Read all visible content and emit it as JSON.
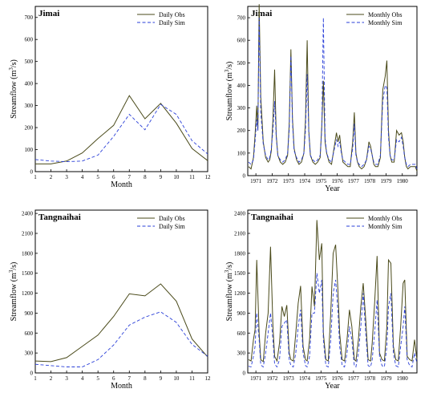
{
  "colors": {
    "obs": "#4a4a1a",
    "sim": "#2a3fd8"
  },
  "chart_data": [
    {
      "type": "line",
      "title": "Jimai",
      "xlabel": "Month",
      "ylabel": "Streamflow (m3/s)",
      "xlim": [
        1,
        12
      ],
      "ylim": [
        0,
        750
      ],
      "xticks": [
        "1",
        "2",
        "3",
        "4",
        "5",
        "6",
        "7",
        "8",
        "9",
        "10",
        "11",
        "12"
      ],
      "yticks": [
        "0",
        "100",
        "200",
        "300",
        "400",
        "500",
        "600",
        "700"
      ],
      "legend_position": "top-right",
      "x": [
        1,
        2,
        3,
        4,
        5,
        6,
        7,
        8,
        9,
        10,
        11,
        12
      ],
      "series": [
        {
          "name": "Daily Obs",
          "values": [
            35,
            35,
            48,
            85,
            150,
            210,
            345,
            240,
            310,
            220,
            105,
            50
          ]
        },
        {
          "name": "Daily Sim",
          "values": [
            55,
            48,
            45,
            48,
            75,
            160,
            260,
            190,
            305,
            260,
            140,
            80
          ]
        }
      ]
    },
    {
      "type": "line",
      "title": "Jimai",
      "xlabel": "Year",
      "ylabel": "Streamflow (m3/s)",
      "xlim": [
        1970.5,
        1980.9
      ],
      "ylim": [
        0,
        750
      ],
      "xticks": [
        "1971",
        "1972",
        "1973",
        "1974",
        "1975",
        "1976",
        "1977",
        "1978",
        "1979",
        "1980"
      ],
      "yticks": [
        "0",
        "100",
        "200",
        "300",
        "400",
        "500",
        "600",
        "700"
      ],
      "legend_position": "top-right",
      "series": [
        {
          "name": "Monthly Obs",
          "x": [
            1970.55,
            1970.7,
            1970.85,
            1970.95,
            1971.05,
            1971.12,
            1971.2,
            1971.3,
            1971.45,
            1971.6,
            1971.75,
            1971.85,
            1971.95,
            1972.05,
            1972.15,
            1972.25,
            1972.35,
            1972.5,
            1972.65,
            1972.8,
            1972.95,
            1973.05,
            1973.15,
            1973.25,
            1973.35,
            1973.5,
            1973.65,
            1973.8,
            1973.95,
            1974.05,
            1974.15,
            1974.25,
            1974.35,
            1974.5,
            1974.65,
            1974.8,
            1974.95,
            1975.05,
            1975.15,
            1975.25,
            1975.35,
            1975.5,
            1975.65,
            1975.8,
            1975.95,
            1976.05,
            1976.15,
            1976.25,
            1976.35,
            1976.5,
            1976.65,
            1976.8,
            1976.95,
            1977.05,
            1977.15,
            1977.25,
            1977.35,
            1977.5,
            1977.65,
            1977.8,
            1977.95,
            1978.05,
            1978.15,
            1978.25,
            1978.35,
            1978.5,
            1978.65,
            1978.8,
            1978.95,
            1979.05,
            1979.15,
            1979.25,
            1979.35,
            1979.5,
            1979.65,
            1979.8,
            1979.95,
            1980.05,
            1980.15,
            1980.25,
            1980.35,
            1980.5,
            1980.65,
            1980.8,
            1980.9
          ],
          "values": [
            40,
            30,
            80,
            180,
            310,
            200,
            760,
            350,
            150,
            80,
            60,
            70,
            110,
            250,
            470,
            180,
            90,
            60,
            50,
            60,
            90,
            230,
            560,
            250,
            120,
            70,
            50,
            60,
            100,
            250,
            600,
            200,
            90,
            60,
            50,
            60,
            80,
            220,
            420,
            150,
            100,
            60,
            50,
            120,
            190,
            150,
            180,
            110,
            60,
            50,
            40,
            40,
            150,
            280,
            100,
            60,
            40,
            30,
            40,
            70,
            150,
            130,
            90,
            50,
            40,
            40,
            80,
            380,
            440,
            510,
            200,
            90,
            60,
            60,
            200,
            180,
            190,
            150,
            80,
            40,
            30,
            40,
            40,
            40,
            20
          ]
        },
        {
          "name": "Monthly Sim",
          "x": [
            1970.55,
            1970.7,
            1970.85,
            1970.95,
            1971.05,
            1971.12,
            1971.2,
            1971.3,
            1971.45,
            1971.6,
            1971.75,
            1971.85,
            1971.95,
            1972.05,
            1972.15,
            1972.25,
            1972.35,
            1972.5,
            1972.65,
            1972.8,
            1972.95,
            1973.05,
            1973.15,
            1973.25,
            1973.35,
            1973.5,
            1973.65,
            1973.8,
            1973.95,
            1974.05,
            1974.15,
            1974.25,
            1974.35,
            1974.5,
            1974.65,
            1974.8,
            1974.95,
            1975.05,
            1975.15,
            1975.25,
            1975.35,
            1975.5,
            1975.65,
            1975.8,
            1975.95,
            1976.05,
            1976.15,
            1976.25,
            1976.35,
            1976.5,
            1976.65,
            1976.8,
            1976.95,
            1977.05,
            1977.15,
            1977.25,
            1977.35,
            1977.5,
            1977.65,
            1977.8,
            1977.95,
            1978.05,
            1978.15,
            1978.25,
            1978.35,
            1978.5,
            1978.65,
            1978.8,
            1978.95,
            1979.05,
            1979.15,
            1979.25,
            1979.35,
            1979.5,
            1979.65,
            1979.8,
            1979.95,
            1980.05,
            1980.15,
            1980.25,
            1980.35,
            1980.5,
            1980.65,
            1980.8,
            1980.9
          ],
          "values": [
            60,
            50,
            70,
            150,
            250,
            200,
            700,
            280,
            140,
            90,
            70,
            80,
            120,
            200,
            330,
            170,
            90,
            70,
            60,
            70,
            100,
            200,
            530,
            230,
            110,
            80,
            60,
            70,
            100,
            200,
            450,
            190,
            90,
            70,
            60,
            70,
            90,
            200,
            700,
            170,
            100,
            70,
            60,
            110,
            160,
            130,
            150,
            100,
            70,
            60,
            50,
            50,
            120,
            230,
            90,
            60,
            50,
            40,
            50,
            70,
            130,
            120,
            90,
            60,
            50,
            50,
            90,
            330,
            400,
            390,
            170,
            90,
            70,
            70,
            160,
            150,
            170,
            130,
            80,
            50,
            40,
            50,
            50,
            50,
            30
          ]
        }
      ]
    },
    {
      "type": "line",
      "title": "Tangnaihai",
      "xlabel": "Month",
      "ylabel": "Streamflow (m3/s)",
      "xlim": [
        1,
        12
      ],
      "ylim": [
        0,
        2450
      ],
      "xticks": [
        "1",
        "2",
        "3",
        "4",
        "5",
        "6",
        "7",
        "8",
        "9",
        "10",
        "11",
        "12"
      ],
      "yticks": [
        "0",
        "300",
        "600",
        "900",
        "1200",
        "1500",
        "1800",
        "2100",
        "2400"
      ],
      "legend_position": "top-right",
      "x": [
        1,
        2,
        3,
        4,
        5,
        6,
        7,
        8,
        9,
        10,
        11,
        12
      ],
      "series": [
        {
          "name": "Daily Obs",
          "values": [
            180,
            170,
            230,
            400,
            570,
            850,
            1190,
            1160,
            1340,
            1080,
            510,
            240
          ]
        },
        {
          "name": "Daily Sim",
          "values": [
            130,
            110,
            90,
            90,
            200,
            420,
            720,
            840,
            920,
            760,
            430,
            250
          ]
        }
      ]
    },
    {
      "type": "line",
      "title": "Tangnaihai",
      "xlabel": "Year",
      "ylabel": "Streamflow (m3/s)",
      "xlim": [
        1970.5,
        1980.9
      ],
      "ylim": [
        0,
        2450
      ],
      "xticks": [
        "1971",
        "1972",
        "1973",
        "1974",
        "1975",
        "1976",
        "1977",
        "1978",
        "1979",
        "1980"
      ],
      "yticks": [
        "0",
        "300",
        "600",
        "900",
        "1200",
        "1500",
        "1800",
        "2100",
        "2400"
      ],
      "legend_position": "top-right",
      "series": [
        {
          "name": "Monthly Obs",
          "x": [
            1970.55,
            1970.7,
            1970.85,
            1970.95,
            1971.05,
            1971.2,
            1971.3,
            1971.45,
            1971.6,
            1971.75,
            1971.9,
            1972.05,
            1972.15,
            1972.3,
            1972.45,
            1972.6,
            1972.75,
            1972.9,
            1973.05,
            1973.15,
            1973.3,
            1973.45,
            1973.6,
            1973.75,
            1973.9,
            1974.05,
            1974.15,
            1974.3,
            1974.45,
            1974.6,
            1974.75,
            1974.9,
            1975.05,
            1975.15,
            1975.3,
            1975.45,
            1975.6,
            1975.75,
            1975.9,
            1976.05,
            1976.15,
            1976.3,
            1976.45,
            1976.6,
            1976.75,
            1976.9,
            1977.05,
            1977.15,
            1977.3,
            1977.45,
            1977.6,
            1977.75,
            1977.9,
            1978.05,
            1978.15,
            1978.3,
            1978.45,
            1978.6,
            1978.75,
            1978.9,
            1979.05,
            1979.15,
            1979.3,
            1979.45,
            1979.6,
            1979.75,
            1979.9,
            1980.05,
            1980.15,
            1980.3,
            1980.45,
            1980.6,
            1980.75,
            1980.9
          ],
          "values": [
            200,
            180,
            500,
            650,
            1700,
            600,
            200,
            170,
            600,
            900,
            1900,
            700,
            250,
            180,
            450,
            1000,
            850,
            1020,
            300,
            200,
            180,
            600,
            1050,
            1310,
            400,
            200,
            180,
            500,
            1300,
            1000,
            2300,
            1700,
            1950,
            600,
            200,
            180,
            900,
            1800,
            1930,
            1200,
            600,
            200,
            180,
            500,
            950,
            700,
            200,
            180,
            500,
            1000,
            1350,
            800,
            200,
            180,
            450,
            1050,
            1760,
            300,
            200,
            180,
            700,
            1700,
            1650,
            400,
            200,
            180,
            700,
            1350,
            1400,
            250,
            200,
            180,
            500,
            200
          ]
        },
        {
          "name": "Monthly Sim",
          "x": [
            1970.55,
            1970.7,
            1970.85,
            1970.95,
            1971.05,
            1971.2,
            1971.3,
            1971.45,
            1971.6,
            1971.75,
            1971.9,
            1972.05,
            1972.15,
            1972.3,
            1972.45,
            1972.6,
            1972.75,
            1972.9,
            1973.05,
            1973.15,
            1973.3,
            1973.45,
            1973.6,
            1973.75,
            1973.9,
            1974.05,
            1974.15,
            1974.3,
            1974.45,
            1974.6,
            1974.75,
            1974.9,
            1975.05,
            1975.15,
            1975.3,
            1975.45,
            1975.6,
            1975.75,
            1975.9,
            1976.05,
            1976.15,
            1976.3,
            1976.45,
            1976.6,
            1976.75,
            1976.9,
            1977.05,
            1977.15,
            1977.3,
            1977.45,
            1977.6,
            1977.75,
            1977.9,
            1978.05,
            1978.15,
            1978.3,
            1978.45,
            1978.6,
            1978.75,
            1978.9,
            1979.05,
            1979.15,
            1979.3,
            1979.45,
            1979.6,
            1979.75,
            1979.9,
            1980.05,
            1980.15,
            1980.3,
            1980.45,
            1980.6,
            1980.75,
            1980.9
          ],
          "values": [
            100,
            90,
            250,
            400,
            900,
            500,
            120,
            90,
            300,
            600,
            900,
            500,
            130,
            90,
            200,
            700,
            750,
            800,
            200,
            110,
            90,
            300,
            700,
            950,
            300,
            110,
            90,
            250,
            900,
            900,
            1500,
            1200,
            1400,
            500,
            110,
            90,
            500,
            1200,
            1400,
            900,
            400,
            110,
            90,
            300,
            700,
            500,
            110,
            90,
            300,
            700,
            1200,
            600,
            110,
            90,
            200,
            600,
            1100,
            250,
            110,
            90,
            400,
            1000,
            1200,
            300,
            110,
            90,
            400,
            700,
            1000,
            200,
            110,
            90,
            300,
            150
          ]
        }
      ]
    }
  ]
}
